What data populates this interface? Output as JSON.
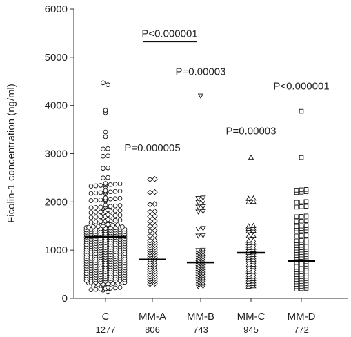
{
  "chart_data": {
    "type": "scatter",
    "subtype": "dot-strip",
    "ylabel": "Ficolin-1 concentration (ng/ml)",
    "ylim": [
      0,
      6000
    ],
    "yticks": [
      0,
      1000,
      2000,
      3000,
      4000,
      5000,
      6000
    ],
    "categories": [
      "C",
      "MM-A",
      "MM-B",
      "MM-C",
      "MM-D"
    ],
    "category_counts": [
      "1277",
      "806",
      "743",
      "945",
      "772"
    ],
    "medians": [
      1277,
      806,
      743,
      945,
      772
    ],
    "annotations": [
      {
        "category": "MM-A",
        "text": "P=0.000005",
        "y": 3050
      },
      {
        "category": "MM-B",
        "text": "P=0.00003",
        "y": 4630
      },
      {
        "category": "MM-C",
        "text": "P=0.00003",
        "y": 3400
      },
      {
        "category": "MM-D",
        "text": "P<0.000001",
        "y": 4330
      }
    ],
    "bracket": {
      "from": "MM-A",
      "to": "MM-B",
      "text": "P<0.000001",
      "y": 5320
    },
    "series": [
      {
        "marker": "circle",
        "values": [
          4470,
          4430,
          3900,
          3850,
          3450,
          3350,
          3100,
          2950,
          2700,
          2500,
          2350,
          2200,
          2050,
          1900,
          1800,
          1700,
          1600,
          1500,
          1450,
          1400,
          1350,
          1300,
          1250,
          1200,
          1150,
          1100,
          1050,
          1000,
          950,
          900,
          850,
          800,
          750,
          700,
          650,
          600,
          550,
          500,
          450,
          400,
          350,
          300,
          200,
          130
        ],
        "outliers": [
          4470,
          4430,
          3900,
          3850,
          3450,
          3350,
          130
        ]
      },
      {
        "marker": "diamond",
        "values": [
          2470,
          2200,
          1950,
          1800,
          1700,
          1600,
          1500,
          1400,
          1300,
          1200,
          1150,
          1100,
          1050,
          1000,
          950,
          900,
          850,
          800,
          750,
          700,
          650,
          600,
          550,
          500,
          450,
          400,
          350,
          300
        ]
      },
      {
        "marker": "triangle-down",
        "values": [
          4200,
          2080,
          2000,
          1900,
          1800,
          1450,
          1300,
          1000,
          950,
          900,
          850,
          800,
          750,
          700,
          650,
          600,
          550,
          500,
          450,
          400,
          350,
          300,
          250
        ]
      },
      {
        "marker": "triangle-up",
        "values": [
          2920,
          2070,
          2000,
          1500,
          1450,
          1400,
          1300,
          1200,
          1150,
          1100,
          1050,
          1000,
          950,
          900,
          850,
          800,
          750,
          700,
          650,
          600,
          550,
          500,
          450,
          400,
          350,
          300,
          250
        ]
      },
      {
        "marker": "square",
        "values": [
          3880,
          2920,
          2250,
          2200,
          2000,
          1900,
          1700,
          1600,
          1500,
          1450,
          1400,
          1300,
          1200,
          1150,
          1100,
          1050,
          1000,
          950,
          900,
          850,
          800,
          750,
          700,
          650,
          600,
          550,
          500,
          450,
          400,
          350,
          300,
          250,
          200
        ]
      }
    ]
  }
}
